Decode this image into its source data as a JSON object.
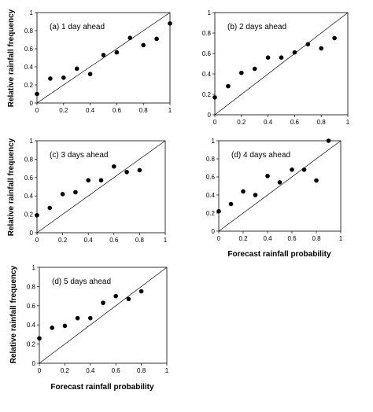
{
  "ylabel": "Relative rainfall frequency",
  "xlabel": "Forecast rainfall probability",
  "chart_data": [
    {
      "type": "scatter",
      "title": "(a) 1 day ahead",
      "x_ticks": [
        "0",
        "0.2",
        "0.4",
        "0.6",
        "0.8",
        "1"
      ],
      "y_ticks": [
        "0",
        "0.2",
        "0.4",
        "0.6",
        "0.8",
        "1"
      ],
      "xlim": [
        0,
        1
      ],
      "ylim": [
        0,
        1
      ],
      "xlabel": "",
      "ylabel": "Relative rainfall frequency",
      "reference_line": "y = x",
      "points": [
        {
          "x": 0.0,
          "y": 0.1
        },
        {
          "x": 0.1,
          "y": 0.27
        },
        {
          "x": 0.2,
          "y": 0.28
        },
        {
          "x": 0.3,
          "y": 0.38
        },
        {
          "x": 0.4,
          "y": 0.32
        },
        {
          "x": 0.5,
          "y": 0.53
        },
        {
          "x": 0.6,
          "y": 0.56
        },
        {
          "x": 0.7,
          "y": 0.72
        },
        {
          "x": 0.8,
          "y": 0.64
        },
        {
          "x": 0.9,
          "y": 0.71
        },
        {
          "x": 1.0,
          "y": 0.88
        }
      ]
    },
    {
      "type": "scatter",
      "title": "(b) 2 days ahead",
      "x_ticks": [
        "0",
        "0.2",
        "0.4",
        "0.6",
        "0.8",
        "1"
      ],
      "y_ticks": [
        "0",
        "0.2",
        "0.4",
        "0.6",
        "0.8",
        "1"
      ],
      "xlim": [
        0,
        1
      ],
      "ylim": [
        0,
        1
      ],
      "xlabel": "",
      "ylabel": "",
      "reference_line": "y = x",
      "points": [
        {
          "x": 0.0,
          "y": 0.17
        },
        {
          "x": 0.1,
          "y": 0.28
        },
        {
          "x": 0.2,
          "y": 0.41
        },
        {
          "x": 0.3,
          "y": 0.45
        },
        {
          "x": 0.4,
          "y": 0.56
        },
        {
          "x": 0.5,
          "y": 0.56
        },
        {
          "x": 0.6,
          "y": 0.61
        },
        {
          "x": 0.7,
          "y": 0.69
        },
        {
          "x": 0.8,
          "y": 0.65
        },
        {
          "x": 0.9,
          "y": 0.75
        }
      ]
    },
    {
      "type": "scatter",
      "title": "(c) 3 days ahead",
      "x_ticks": [
        "0",
        "0.2",
        "0.4",
        "0.6",
        "0.8",
        "1"
      ],
      "y_ticks": [
        "0",
        "0.2",
        "0.4",
        "0.6",
        "0.8",
        "1"
      ],
      "xlim": [
        0,
        1
      ],
      "ylim": [
        0,
        1
      ],
      "xlabel": "",
      "ylabel": "Relative rainfall frequency",
      "reference_line": "y = x",
      "points": [
        {
          "x": 0.0,
          "y": 0.19
        },
        {
          "x": 0.1,
          "y": 0.27
        },
        {
          "x": 0.2,
          "y": 0.42
        },
        {
          "x": 0.3,
          "y": 0.44
        },
        {
          "x": 0.4,
          "y": 0.57
        },
        {
          "x": 0.5,
          "y": 0.57
        },
        {
          "x": 0.6,
          "y": 0.72
        },
        {
          "x": 0.7,
          "y": 0.66
        },
        {
          "x": 0.8,
          "y": 0.68
        }
      ]
    },
    {
      "type": "scatter",
      "title": "(d) 4 days ahead",
      "x_ticks": [
        "0",
        "0.2",
        "0.4",
        "0.6",
        "0.8",
        "1"
      ],
      "y_ticks": [
        "0",
        "0.2",
        "0.4",
        "0.6",
        "0.8",
        "1"
      ],
      "xlim": [
        0,
        1
      ],
      "ylim": [
        0,
        1
      ],
      "xlabel": "Forecast rainfall probability",
      "ylabel": "",
      "reference_line": "y = x",
      "points": [
        {
          "x": 0.0,
          "y": 0.22
        },
        {
          "x": 0.1,
          "y": 0.3
        },
        {
          "x": 0.2,
          "y": 0.44
        },
        {
          "x": 0.3,
          "y": 0.4
        },
        {
          "x": 0.4,
          "y": 0.61
        },
        {
          "x": 0.5,
          "y": 0.54
        },
        {
          "x": 0.6,
          "y": 0.68
        },
        {
          "x": 0.7,
          "y": 0.68
        },
        {
          "x": 0.8,
          "y": 0.56
        },
        {
          "x": 0.9,
          "y": 1.0
        }
      ]
    },
    {
      "type": "scatter",
      "title": "(d) 5 days ahead",
      "x_ticks": [
        "0",
        "0.2",
        "0.4",
        "0.6",
        "0.8",
        "1"
      ],
      "y_ticks": [
        "0",
        "0.2",
        "0.4",
        "0.6",
        "0.8",
        "1"
      ],
      "xlim": [
        0,
        1
      ],
      "ylim": [
        0,
        1
      ],
      "xlabel": "Forecast rainfall probability",
      "ylabel": "Relative rainfall frequency",
      "reference_line": "y = x",
      "points": [
        {
          "x": 0.0,
          "y": 0.26
        },
        {
          "x": 0.1,
          "y": 0.37
        },
        {
          "x": 0.2,
          "y": 0.39
        },
        {
          "x": 0.3,
          "y": 0.47
        },
        {
          "x": 0.4,
          "y": 0.47
        },
        {
          "x": 0.5,
          "y": 0.63
        },
        {
          "x": 0.6,
          "y": 0.7
        },
        {
          "x": 0.7,
          "y": 0.67
        },
        {
          "x": 0.8,
          "y": 0.75
        }
      ]
    }
  ]
}
